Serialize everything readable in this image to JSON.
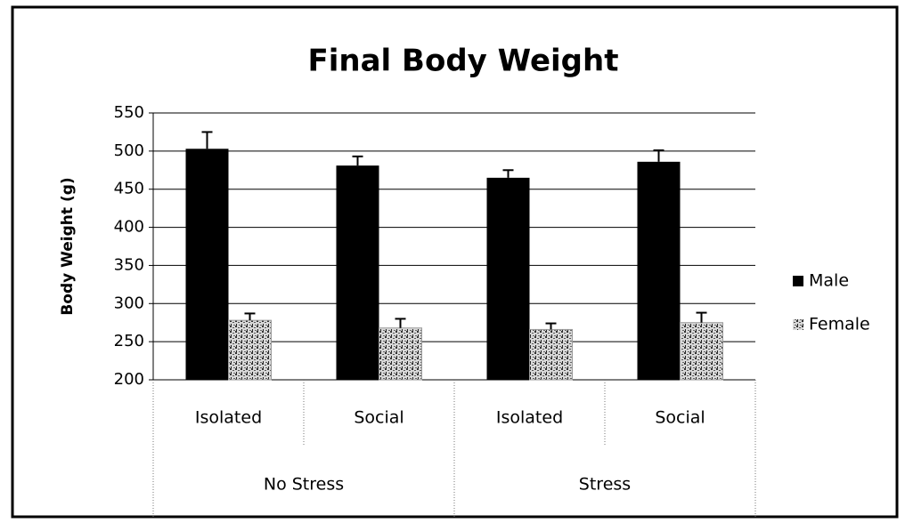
{
  "chart_data": {
    "type": "bar",
    "title": "Final Body Weight",
    "y_label": "Body Weight (g)",
    "categories": [
      "Isolated",
      "Social",
      "Isolated",
      "Social"
    ],
    "groups": [
      "No Stress",
      "Stress"
    ],
    "series": [
      {
        "name": "Male",
        "color": "#000000",
        "values": [
          503,
          481,
          465,
          486
        ],
        "errors": [
          22,
          12,
          10,
          15
        ]
      },
      {
        "name": "Female",
        "color": "#9a9a9a",
        "values": [
          278,
          268,
          266,
          275
        ],
        "errors": [
          9,
          12,
          8,
          13
        ]
      }
    ],
    "ylim": [
      200,
      550
    ],
    "yticks": [
      200,
      250,
      300,
      350,
      400,
      450,
      500,
      550
    ],
    "grid": true,
    "legend": "right"
  }
}
